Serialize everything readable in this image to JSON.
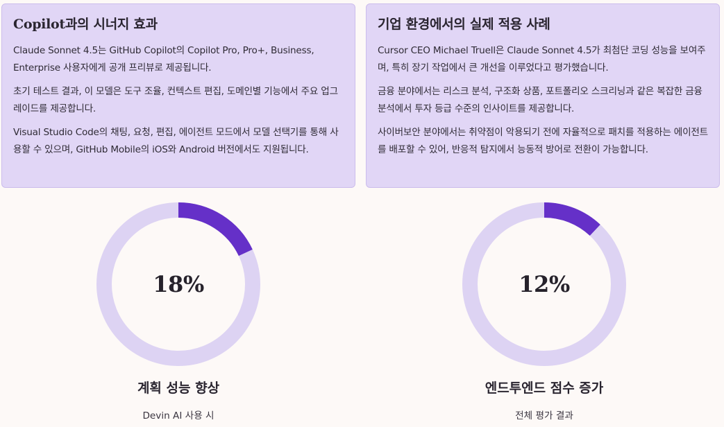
{
  "cards": [
    {
      "title": "Copilot과의 시너지 효과",
      "paragraphs": [
        "Claude Sonnet 4.5는 GitHub Copilot의 Copilot Pro, Pro+, Business, Enterprise 사용자에게 공개 프리뷰로 제공됩니다.",
        "초기 테스트 결과, 이 모델은 도구 조율, 컨텍스트 편집, 도메인별 기능에서 주요 업그레이드를 제공합니다.",
        "Visual Studio Code의 채팅, 요청, 편집, 에이전트 모드에서 모델 선택기를 통해 사용할 수 있으며, GitHub Mobile의 iOS와 Android 버전에서도 지원됩니다."
      ]
    },
    {
      "title": "기업 환경에서의 실제 적용 사례",
      "paragraphs": [
        "Cursor CEO Michael Truell은 Claude Sonnet 4.5가 최첨단 코딩 성능을 보여주며, 특히 장기 작업에서 큰 개선을 이루었다고 평가했습니다.",
        "금융 분야에서는 리스크 분석, 구조화 상품, 포트폴리오 스크리닝과 같은 복잡한 금융 분석에서 투자 등급 수준의 인사이트를 제공합니다.",
        "사이버보안 분야에서는 취약점이 악용되기 전에 자율적으로 패치를 적용하는 에이전트를 배포할 수 있어, 반응적 탐지에서 능동적 방어로 전환이 가능합니다."
      ]
    }
  ],
  "stats": [
    {
      "value_label": "18%",
      "percent": 18,
      "title": "계획 성능 향상",
      "subtitle": "Devin AI 사용 시"
    },
    {
      "value_label": "12%",
      "percent": 12,
      "title": "엔드투엔드 점수 증가",
      "subtitle": "전체 평가 결과"
    }
  ],
  "colors": {
    "card_bg": "#e1d6f6",
    "ring_track": "#ddd3f3",
    "ring_fill": "#6530c8",
    "page_bg": "#fdf9f7"
  }
}
